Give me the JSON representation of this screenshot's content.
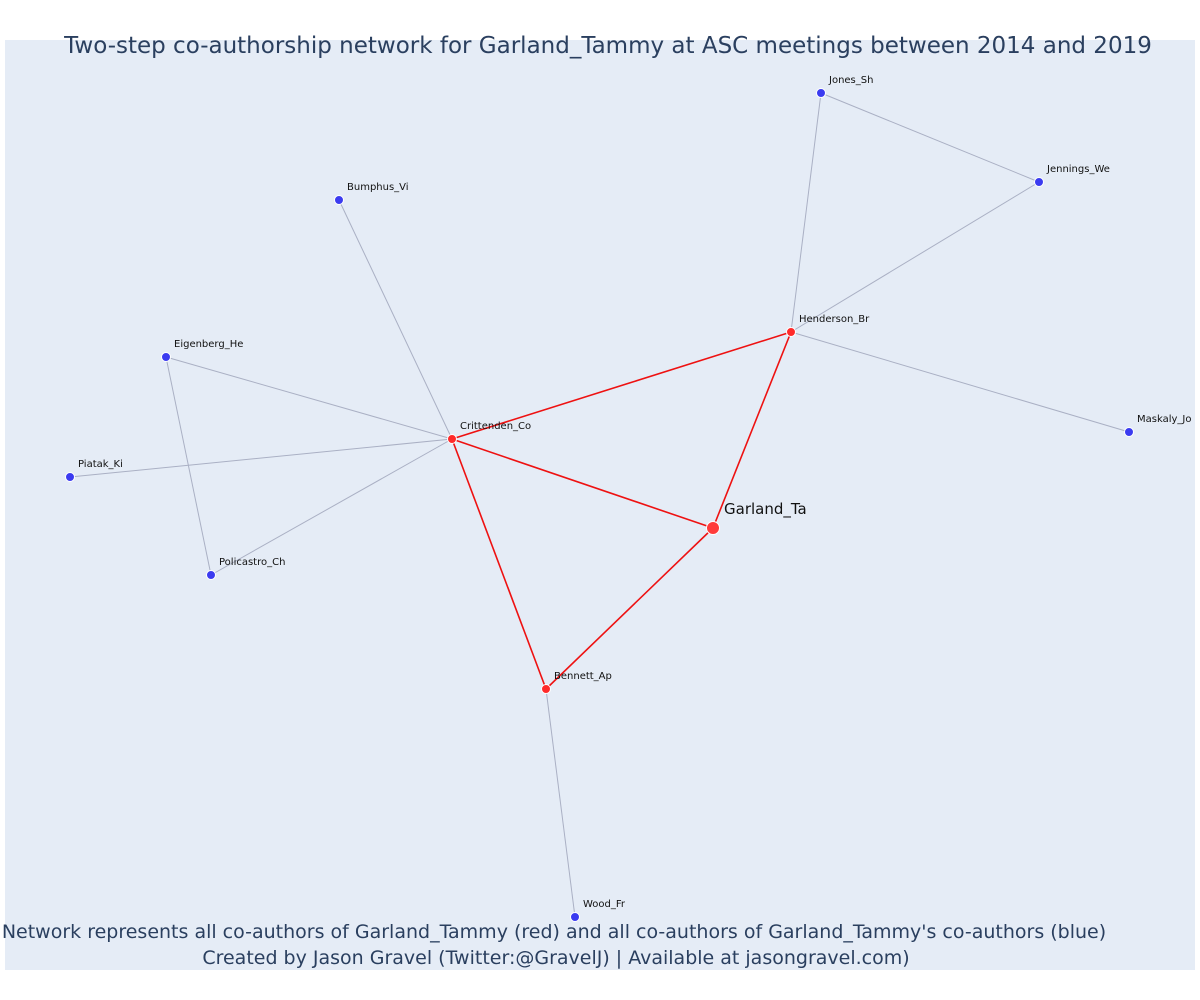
{
  "title": "Two-step co-authorship network for Garland_Tammy at ASC meetings between 2014 and 2019",
  "caption_line1": "Network represents all co-authors of Garland_Tammy (red) and all co-authors of Garland_Tammy's co-authors (blue)",
  "caption_line2": "Created by Jason Gravel (Twitter:@GravelJ) | Available at jasongravel.com)",
  "colors": {
    "background": "#e5ecf6",
    "ego": "#ff3b3b",
    "first_step": "#ff2a2a",
    "second_step": "#3b3bf0",
    "edge_red": "#ee1111",
    "edge_grey": "#aab0c4"
  },
  "nodes": [
    {
      "id": "Garland_Ta",
      "label": "Garland_Ta",
      "group": "ego"
    },
    {
      "id": "Crittenden_Co",
      "label": "Crittenden_Co",
      "group": "first_step"
    },
    {
      "id": "Henderson_Br",
      "label": "Henderson_Br",
      "group": "first_step"
    },
    {
      "id": "Bennett_Ap",
      "label": "Bennett_Ap",
      "group": "first_step"
    },
    {
      "id": "Jones_Sh",
      "label": "Jones_Sh",
      "group": "second_step"
    },
    {
      "id": "Jennings_We",
      "label": "Jennings_We",
      "group": "second_step"
    },
    {
      "id": "Maskaly_Jo",
      "label": "Maskaly_Jo",
      "group": "second_step"
    },
    {
      "id": "Bumphus_Vi",
      "label": "Bumphus_Vi",
      "group": "second_step"
    },
    {
      "id": "Eigenberg_He",
      "label": "Eigenberg_He",
      "group": "second_step"
    },
    {
      "id": "Piatak_Ki",
      "label": "Piatak_Ki",
      "group": "second_step"
    },
    {
      "id": "Policastro_Ch",
      "label": "Policastro_Ch",
      "group": "second_step"
    },
    {
      "id": "Wood_Fr",
      "label": "Wood_Fr",
      "group": "second_step"
    }
  ],
  "edges": [
    {
      "source": "Garland_Ta",
      "target": "Crittenden_Co",
      "kind": "red"
    },
    {
      "source": "Garland_Ta",
      "target": "Henderson_Br",
      "kind": "red"
    },
    {
      "source": "Garland_Ta",
      "target": "Bennett_Ap",
      "kind": "red"
    },
    {
      "source": "Crittenden_Co",
      "target": "Henderson_Br",
      "kind": "red"
    },
    {
      "source": "Crittenden_Co",
      "target": "Bennett_Ap",
      "kind": "red"
    },
    {
      "source": "Henderson_Br",
      "target": "Jones_Sh",
      "kind": "grey"
    },
    {
      "source": "Henderson_Br",
      "target": "Jennings_We",
      "kind": "grey"
    },
    {
      "source": "Jones_Sh",
      "target": "Jennings_We",
      "kind": "grey"
    },
    {
      "source": "Henderson_Br",
      "target": "Maskaly_Jo",
      "kind": "grey"
    },
    {
      "source": "Crittenden_Co",
      "target": "Bumphus_Vi",
      "kind": "grey"
    },
    {
      "source": "Crittenden_Co",
      "target": "Eigenberg_He",
      "kind": "grey"
    },
    {
      "source": "Crittenden_Co",
      "target": "Piatak_Ki",
      "kind": "grey"
    },
    {
      "source": "Crittenden_Co",
      "target": "Policastro_Ch",
      "kind": "grey"
    },
    {
      "source": "Eigenberg_He",
      "target": "Policastro_Ch",
      "kind": "grey"
    },
    {
      "source": "Bennett_Ap",
      "target": "Wood_Fr",
      "kind": "grey"
    }
  ]
}
